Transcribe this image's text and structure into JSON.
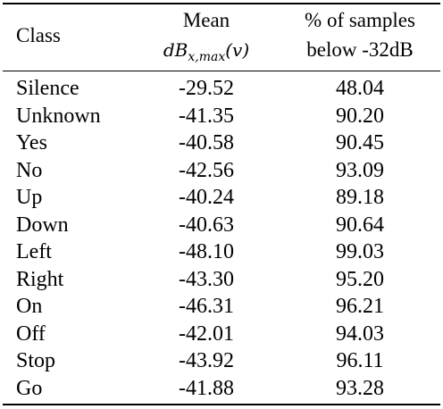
{
  "table": {
    "headers": {
      "class": "Class",
      "mean_line1": "Mean",
      "mean_line2_base": "dB",
      "mean_line2_sub": "x,max",
      "mean_line2_arg": "(v)",
      "pct_line1": "% of samples",
      "pct_line2": "below -32dB"
    },
    "rows": [
      {
        "class": "Silence",
        "mean": "-29.52",
        "pct": "48.04"
      },
      {
        "class": "Unknown",
        "mean": "-41.35",
        "pct": "90.20"
      },
      {
        "class": "Yes",
        "mean": "-40.58",
        "pct": "90.45"
      },
      {
        "class": "No",
        "mean": "-42.56",
        "pct": "93.09"
      },
      {
        "class": "Up",
        "mean": "-40.24",
        "pct": "89.18"
      },
      {
        "class": "Down",
        "mean": "-40.63",
        "pct": "90.64"
      },
      {
        "class": "Left",
        "mean": "-48.10",
        "pct": "99.03"
      },
      {
        "class": "Right",
        "mean": "-43.30",
        "pct": "95.20"
      },
      {
        "class": "On",
        "mean": "-46.31",
        "pct": "96.21"
      },
      {
        "class": "Off",
        "mean": "-42.01",
        "pct": "94.03"
      },
      {
        "class": "Stop",
        "mean": "-43.92",
        "pct": "96.11"
      },
      {
        "class": "Go",
        "mean": "-41.88",
        "pct": "93.28"
      }
    ]
  }
}
